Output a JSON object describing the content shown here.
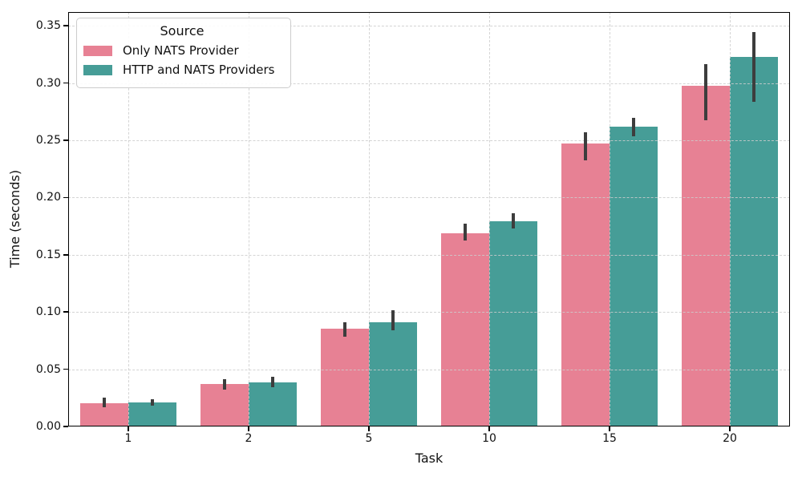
{
  "figure": {
    "xlabel": "Task",
    "ylabel": "Time (seconds)",
    "background_color": "#ffffff",
    "spine_color": "#000000",
    "text_color": "#111111"
  },
  "legend": {
    "title": "Source",
    "position": "upper left",
    "entries": [
      {
        "label": "Only NATS Provider",
        "color": "#e78194"
      },
      {
        "label": "HTTP and NATS Providers",
        "color": "#469d97"
      }
    ]
  },
  "chart_data": {
    "type": "bar",
    "title": "",
    "xlabel": "Task",
    "ylabel": "Time (seconds)",
    "categories": [
      "1",
      "2",
      "5",
      "10",
      "15",
      "20"
    ],
    "series": [
      {
        "name": "Only NATS Provider",
        "color": "#e78194",
        "values": [
          0.0205,
          0.0372,
          0.0855,
          0.169,
          0.247,
          0.2975
        ],
        "ci_low": [
          0.0165,
          0.0325,
          0.0784,
          0.1623,
          0.2323,
          0.2673
        ],
        "ci_high": [
          0.0252,
          0.0415,
          0.0912,
          0.1768,
          0.2568,
          0.3163
        ]
      },
      {
        "name": "HTTP and NATS Providers",
        "color": "#469d97",
        "values": [
          0.0212,
          0.0386,
          0.0912,
          0.1794,
          0.2617,
          0.3226
        ],
        "ci_low": [
          0.018,
          0.034,
          0.0842,
          0.1728,
          0.2533,
          0.2834
        ],
        "ci_high": [
          0.024,
          0.0435,
          0.1017,
          0.1864,
          0.2696,
          0.3447
        ]
      }
    ],
    "ylim": [
      0,
      0.362
    ],
    "yticks": [
      0.0,
      0.05,
      0.1,
      0.15,
      0.2,
      0.25,
      0.3,
      0.35
    ],
    "ytick_labels": [
      "0.00",
      "0.05",
      "0.10",
      "0.15",
      "0.20",
      "0.25",
      "0.30",
      "0.35"
    ],
    "grid": true,
    "grid_style": "dashed",
    "grid_axes": "both",
    "legend_position": "upper left",
    "error_bar_color": "#3d3d3d",
    "bar_group_width_fraction": 0.8
  }
}
